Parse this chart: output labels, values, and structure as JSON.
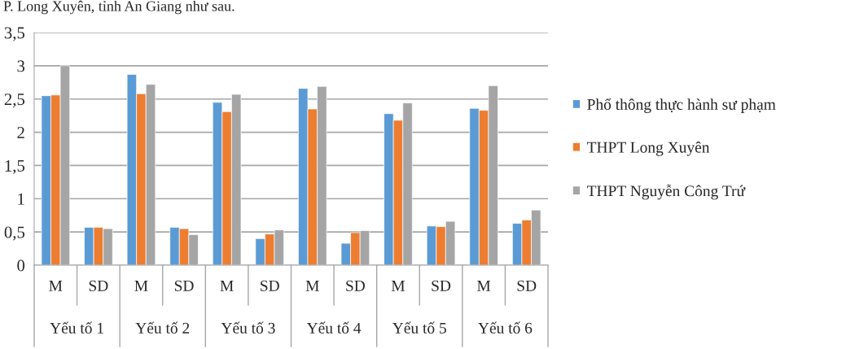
{
  "chart_data": {
    "type": "bar",
    "title": "P. Long Xuyên, tỉnh An Giang như sau.",
    "categories": [
      "M",
      "SD",
      "M",
      "SD",
      "M",
      "SD",
      "M",
      "SD",
      "M",
      "SD",
      "M",
      "SD"
    ],
    "annotations": [
      "Yếu tố 1",
      "Yếu tố 2",
      "Yếu tố 3",
      "Yếu tố 4",
      "Yếu tố 5",
      "Yếu tố 6"
    ],
    "series": [
      {
        "name": "Phổ thông thực hành sư phạm",
        "color": "#5b9bd5",
        "values": [
          2.55,
          0.57,
          2.87,
          0.57,
          2.45,
          0.4,
          2.66,
          0.33,
          2.28,
          0.59,
          2.36,
          0.63
        ]
      },
      {
        "name": "THPT Long Xuyên",
        "color": "#ed7d31",
        "values": [
          2.56,
          0.57,
          2.58,
          0.55,
          2.31,
          0.47,
          2.35,
          0.49,
          2.18,
          0.58,
          2.33,
          0.68
        ]
      },
      {
        "name": "THPT Nguyễn Công Trứ",
        "color": "#a5a5a5",
        "values": [
          3.0,
          0.55,
          2.72,
          0.46,
          2.57,
          0.53,
          2.69,
          0.52,
          2.44,
          0.66,
          2.7,
          0.83
        ]
      }
    ],
    "ylim": [
      0,
      3.5
    ],
    "yticks": [
      0,
      {
        "value": 0.5,
        "label": "0,5"
      },
      1,
      {
        "value": 1.5,
        "label": "1,5"
      },
      2,
      {
        "value": 2.5,
        "label": "2,5"
      },
      3,
      {
        "value": 3.5,
        "label": "3,5"
      }
    ],
    "grid": "y",
    "legend": "right"
  }
}
